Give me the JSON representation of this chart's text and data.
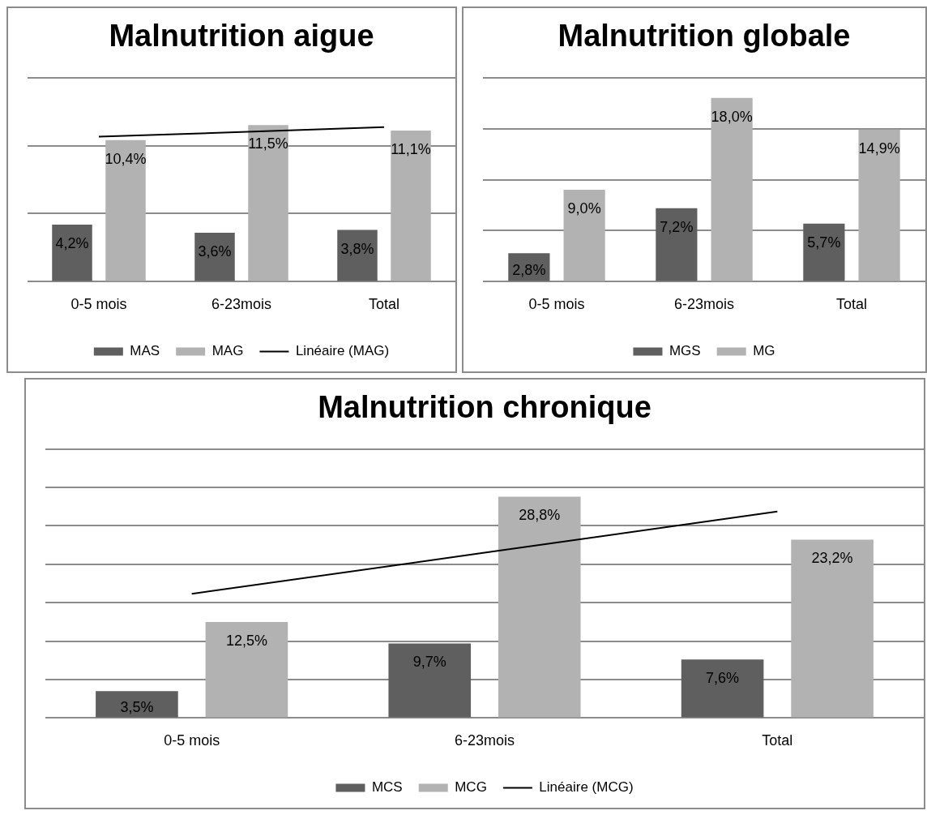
{
  "chart_data": [
    {
      "type": "bar",
      "title": "Malnutrition aigue",
      "categories": [
        "0-5 mois",
        "6-23mois",
        "Total"
      ],
      "ylim": [
        0,
        15
      ],
      "yticks": [
        {
          "value": 0,
          "label": null
        },
        {
          "value": 5,
          "label": null
        },
        {
          "value": 10,
          "label": null
        },
        {
          "value": 15,
          "label": null
        }
      ],
      "grid": "y",
      "tick_labels": "x",
      "legend": "bottom",
      "series": [
        {
          "name": "MAS",
          "color": "#5f5f5f",
          "values": [
            4.2,
            3.6,
            3.8
          ],
          "value_labels": [
            "4,2%",
            "3,6%",
            "3,8%"
          ]
        },
        {
          "name": "MAG",
          "color": "#b2b2b2",
          "values": [
            10.4,
            11.5,
            11.1
          ],
          "value_labels": [
            "10,4%",
            "11,5%",
            "11,1%"
          ]
        },
        {
          "name": "Linéaire (MAG)",
          "type": "line",
          "color": "#000000",
          "values": [
            10.65,
            11.0,
            11.35
          ]
        }
      ]
    },
    {
      "type": "bar",
      "title": "Malnutrition globale",
      "categories": [
        "0-5 mois",
        "6-23mois",
        "Total"
      ],
      "ylim": [
        0,
        20
      ],
      "yticks": [
        {
          "value": 0,
          "label": null
        },
        {
          "value": 5,
          "label": null
        },
        {
          "value": 10,
          "label": null
        },
        {
          "value": 15,
          "label": null
        },
        {
          "value": 20,
          "label": null
        }
      ],
      "grid": "y",
      "tick_labels": "x",
      "legend": "bottom",
      "series": [
        {
          "name": "MGS",
          "color": "#5f5f5f",
          "values": [
            2.8,
            7.2,
            5.7
          ],
          "value_labels": [
            "2,8%",
            "7,2%",
            "5,7%"
          ]
        },
        {
          "name": "MG",
          "color": "#b2b2b2",
          "values": [
            9.0,
            18.0,
            14.9
          ],
          "value_labels": [
            "9,0%",
            "18,0%",
            "14,9%"
          ]
        }
      ]
    },
    {
      "type": "bar",
      "title": "Malnutrition chronique",
      "categories": [
        "0-5 mois",
        "6-23mois",
        "Total"
      ],
      "ylim": [
        0,
        35
      ],
      "yticks": [
        {
          "value": 0,
          "label": null
        },
        {
          "value": 5,
          "label": null
        },
        {
          "value": 10,
          "label": null
        },
        {
          "value": 15,
          "label": null
        },
        {
          "value": 20,
          "label": null
        },
        {
          "value": 25,
          "label": null
        },
        {
          "value": 30,
          "label": null
        },
        {
          "value": 35,
          "label": null
        }
      ],
      "grid": "y",
      "tick_labels": "x",
      "legend": "bottom",
      "series": [
        {
          "name": "MCS",
          "color": "#5f5f5f",
          "values": [
            3.5,
            9.7,
            7.6
          ],
          "value_labels": [
            "3,5%",
            "9,7%",
            "7,6%"
          ]
        },
        {
          "name": "MCG",
          "color": "#b2b2b2",
          "values": [
            12.5,
            28.8,
            23.2
          ],
          "value_labels": [
            "12,5%",
            "28,8%",
            "23,2%"
          ]
        },
        {
          "name": "Linéaire (MCG)",
          "type": "line",
          "color": "#000000",
          "values": [
            16.15,
            21.5,
            26.85
          ]
        }
      ]
    }
  ]
}
